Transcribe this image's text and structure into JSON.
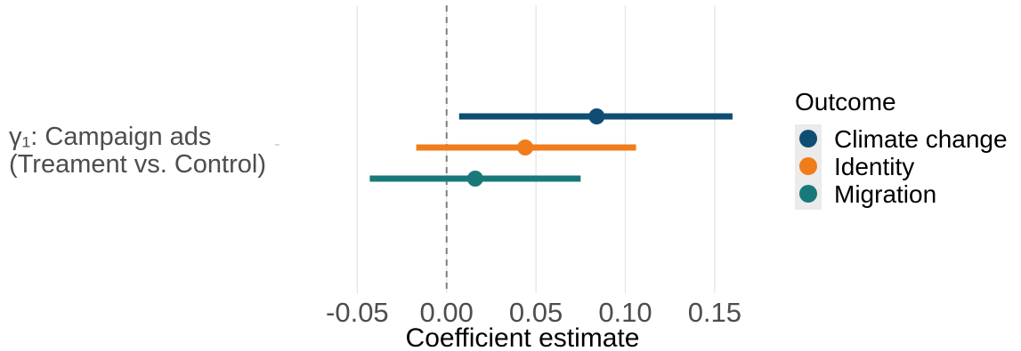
{
  "chart_data": {
    "type": "forest",
    "title": "",
    "xlabel": "Coefficient estimate",
    "ylabel_lines": [
      "γ₁: Campaign ads",
      "(Treament vs. Control)"
    ],
    "xlim": [
      -0.0975,
      0.1685
    ],
    "x_ticks": [
      -0.05,
      0.0,
      0.05,
      0.1,
      0.15
    ],
    "x_tick_labels": [
      "-0.05",
      "0.00",
      "0.05",
      "0.10",
      "0.15"
    ],
    "reference_line": 0.0,
    "grid": true,
    "legend": {
      "title": "Outcome",
      "placement": "right"
    },
    "series": [
      {
        "name": "Climate change",
        "estimate": 0.084,
        "lower": 0.007,
        "upper": 0.16,
        "color": "#0f4d73"
      },
      {
        "name": "Identity",
        "estimate": 0.044,
        "lower": -0.017,
        "upper": 0.106,
        "color": "#f07c1c"
      },
      {
        "name": "Migration",
        "estimate": 0.016,
        "lower": -0.043,
        "upper": 0.075,
        "color": "#19797a"
      }
    ]
  }
}
